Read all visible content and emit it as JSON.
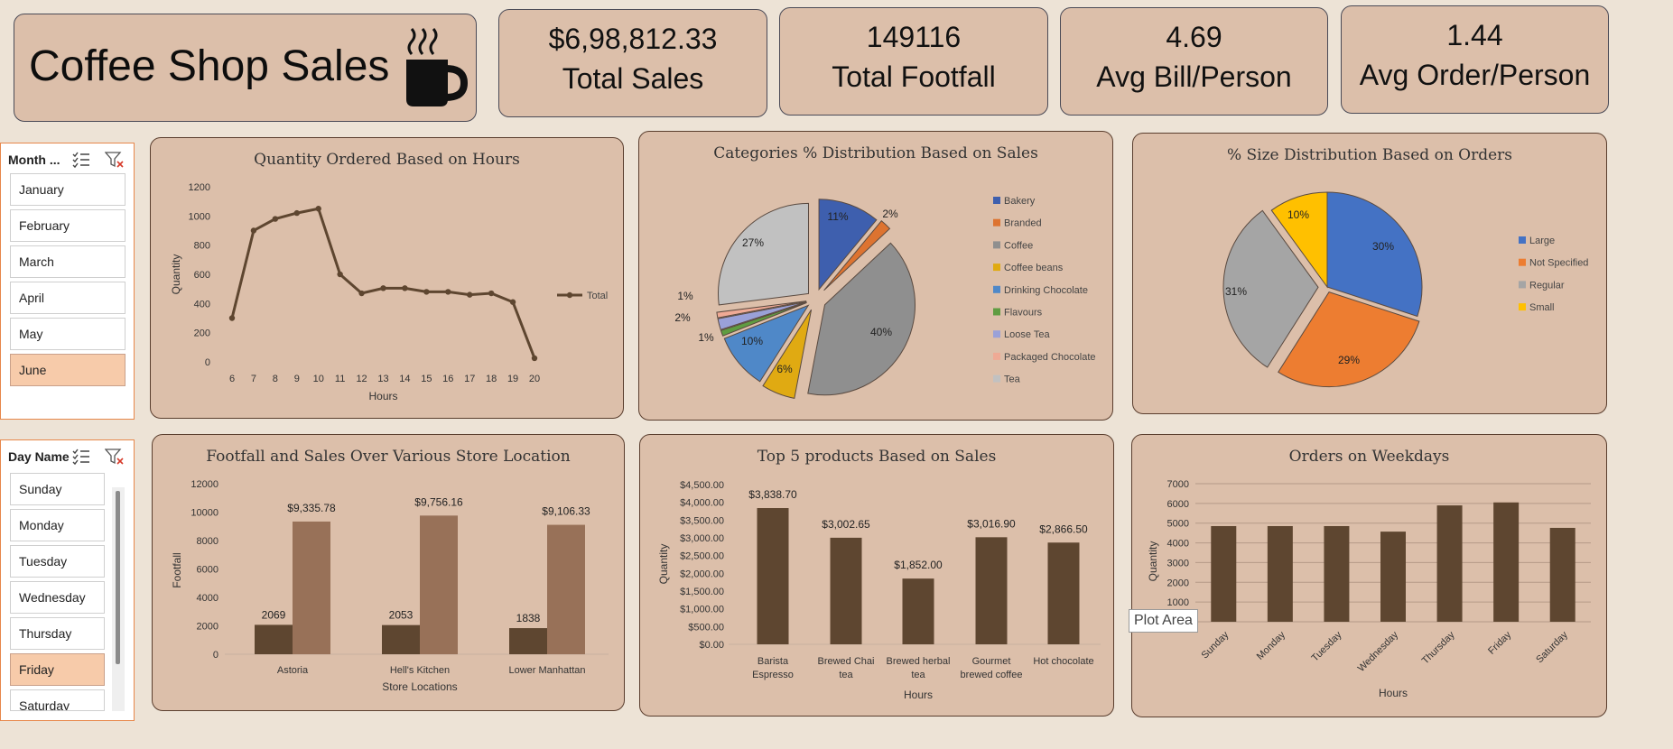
{
  "header": {
    "title": "Coffee Shop Sales"
  },
  "kpis": [
    {
      "value": "$6,98,812.33",
      "label": "Total Sales"
    },
    {
      "value": "149116",
      "label": "Total Footfall"
    },
    {
      "value": "4.69",
      "label": "Avg Bill/Person"
    },
    {
      "value": "1.44",
      "label": "Avg Order/Person"
    }
  ],
  "month_slicer": {
    "title": "Month ...",
    "items": [
      "January",
      "February",
      "March",
      "April",
      "May",
      "June"
    ],
    "selected": "June"
  },
  "day_slicer": {
    "title": "Day Name",
    "items": [
      "Sunday",
      "Monday",
      "Tuesday",
      "Wednesday",
      "Thursday",
      "Friday",
      "Saturday"
    ],
    "selected": "Friday"
  },
  "tooltip": {
    "text": "Plot Area"
  },
  "colors": {
    "brown": "#5e4630",
    "light_brown": "#987158",
    "card": "#dcbfaa",
    "border": "#5a3e2e"
  },
  "chart_data": [
    {
      "type": "line",
      "title": "Quantity Ordered Based on Hours",
      "xlabel": "Hours",
      "ylabel": "Quantity",
      "x": [
        6,
        7,
        8,
        9,
        10,
        11,
        12,
        13,
        14,
        15,
        16,
        17,
        18,
        19,
        20
      ],
      "series": [
        {
          "name": "Total",
          "values": [
            300,
            900,
            980,
            1020,
            1050,
            600,
            470,
            505,
            505,
            480,
            480,
            460,
            470,
            410,
            25
          ]
        }
      ],
      "ylim": [
        0,
        1200
      ],
      "yticks": [
        0,
        200,
        400,
        600,
        800,
        1000,
        1200
      ],
      "legend": "right"
    },
    {
      "type": "pie",
      "title": "Categories % Distribution Based on Sales",
      "categories": [
        "Bakery",
        "Branded",
        "Coffee",
        "Coffee beans",
        "Drinking Chocolate",
        "Flavours",
        "Loose Tea",
        "Packaged Chocolate",
        "Tea"
      ],
      "values": [
        11,
        2,
        40,
        6,
        10,
        1,
        2,
        1,
        27
      ],
      "labels": [
        "11%",
        "2%",
        "40%",
        "6%",
        "10%",
        "1%",
        "2%",
        "1%",
        "27%"
      ],
      "colors": [
        "#3e5fae",
        "#dd7330",
        "#8f8f8f",
        "#e0aa12",
        "#4f88c8",
        "#5f9c41",
        "#9aa1d8",
        "#efaa95",
        "#c1c1c1"
      ],
      "legend": "right"
    },
    {
      "type": "pie",
      "title": "% Size Distribution Based on Orders",
      "categories": [
        "Large",
        "Not Specified",
        "Regular",
        "Small"
      ],
      "values": [
        30,
        29,
        31,
        10
      ],
      "labels": [
        "30%",
        "29%",
        "31%",
        "10%"
      ],
      "colors": [
        "#4472c4",
        "#ed7d31",
        "#a5a5a5",
        "#ffc000"
      ],
      "legend": "right"
    },
    {
      "type": "bar",
      "title": "Footfall and Sales Over Various Store Location",
      "xlabel": "Store Locations",
      "ylabel": "Footfall",
      "categories": [
        "Astoria",
        "Hell's Kitchen",
        "Lower Manhattan"
      ],
      "series": [
        {
          "values": [
            2069,
            2053,
            1838
          ],
          "labels": [
            "2069",
            "2053",
            "1838"
          ]
        },
        {
          "values": [
            9335.78,
            9756.16,
            9106.33
          ],
          "labels": [
            "$9,335.78",
            "$9,756.16",
            "$9,106.33"
          ]
        }
      ],
      "ylim": [
        0,
        12000
      ],
      "yticks": [
        0,
        2000,
        4000,
        6000,
        8000,
        10000,
        12000
      ]
    },
    {
      "type": "bar",
      "title": "Top 5 products Based on Sales",
      "xlabel": "Hours",
      "ylabel": "Quantity",
      "categories": [
        [
          "Barista",
          "Espresso"
        ],
        [
          "Brewed Chai",
          "tea"
        ],
        [
          "Brewed herbal",
          "tea"
        ],
        [
          "Gourmet",
          "brewed coffee"
        ],
        [
          "Hot chocolate"
        ]
      ],
      "values": [
        3838.7,
        3002.65,
        1852.0,
        3016.9,
        2866.5
      ],
      "labels": [
        "$3,838.70",
        "$3,002.65",
        "$1,852.00",
        "$3,016.90",
        "$2,866.50"
      ],
      "ylim": [
        0,
        4500
      ],
      "yticks": [
        "$0.00",
        "$500.00",
        "$1,000.00",
        "$1,500.00",
        "$2,000.00",
        "$2,500.00",
        "$3,000.00",
        "$3,500.00",
        "$4,000.00",
        "$4,500.00"
      ]
    },
    {
      "type": "bar",
      "title": "Orders on Weekdays",
      "xlabel": "Hours",
      "ylabel": "Quantity",
      "categories": [
        "Sunday",
        "Monday",
        "Tuesday",
        "Wednesday",
        "Thursday",
        "Friday",
        "Saturday"
      ],
      "values": [
        4850,
        4850,
        4850,
        4570,
        5900,
        6050,
        4760
      ],
      "ylim": [
        0,
        7000
      ],
      "yticks": [
        0,
        1000,
        2000,
        3000,
        4000,
        5000,
        6000,
        7000
      ],
      "grid": true
    }
  ]
}
